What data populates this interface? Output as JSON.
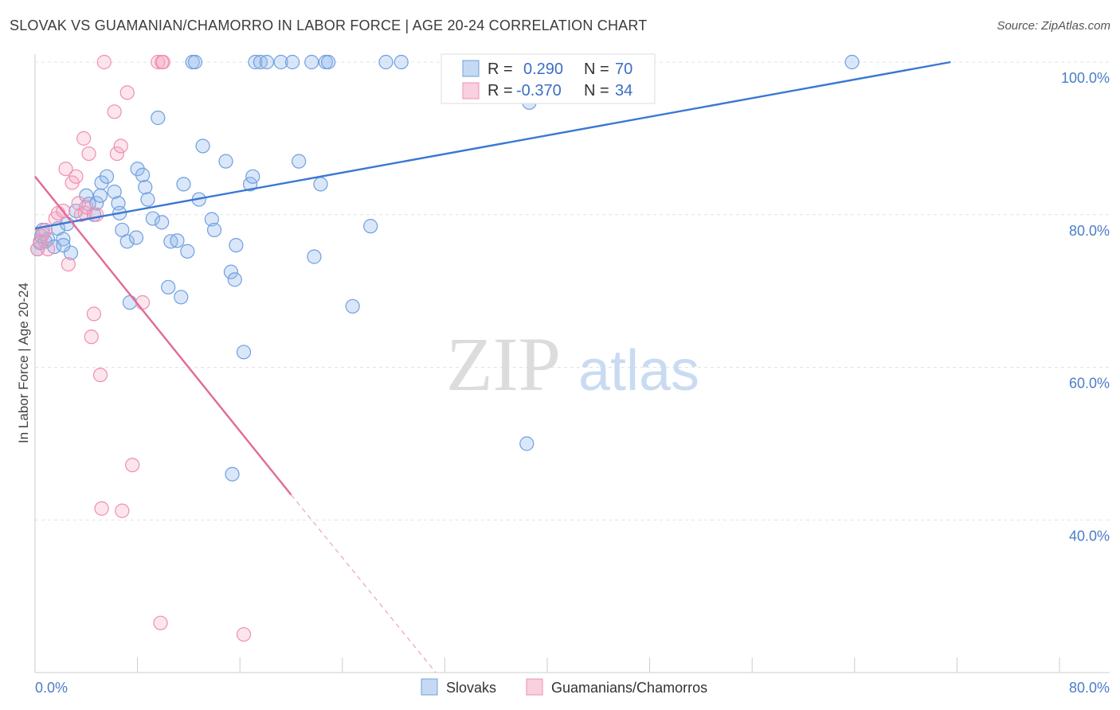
{
  "title": "SLOVAK VS GUAMANIAN/CHAMORRO IN LABOR FORCE | AGE 20-24 CORRELATION CHART",
  "source": "Source: ZipAtlas.com",
  "watermark": {
    "zip": "ZIP",
    "atlas": "atlas"
  },
  "legend": {
    "r_label": "R =",
    "n_label": "N =",
    "rows": [
      {
        "series": "Slovaks",
        "r": "0.290",
        "n": "70",
        "color": "#6f9fe0"
      },
      {
        "series": "Guamanians/Chamorros",
        "r": "-0.370",
        "n": "34",
        "color": "#ef8fb0"
      }
    ]
  },
  "chart_data": {
    "type": "scatter",
    "title": "SLOVAK VS GUAMANIAN/CHAMORRO IN LABOR FORCE | AGE 20-24 CORRELATION CHART",
    "xlabel": "",
    "ylabel": "In Labor Force | Age 20-24",
    "xlim": [
      0,
      80
    ],
    "ylim": [
      20,
      100
    ],
    "x_tick_labels": [
      "0.0%",
      "80.0%"
    ],
    "y_ticks": [
      40,
      60,
      80,
      100
    ],
    "y_tick_labels": [
      "40.0%",
      "60.0%",
      "80.0%",
      "100.0%"
    ],
    "grid": true,
    "legend_position": "top-center",
    "series": [
      {
        "name": "Slovaks",
        "color": "#6f9fe0",
        "trend": {
          "x": [
            0,
            71.5
          ],
          "y": [
            78.2,
            100
          ]
        },
        "points": [
          [
            0.2,
            75.5
          ],
          [
            0.4,
            76.3
          ],
          [
            0.5,
            77.2
          ],
          [
            0.6,
            78
          ],
          [
            0.8,
            76.5
          ],
          [
            1,
            76.8
          ],
          [
            1.5,
            75.8
          ],
          [
            1.8,
            78.2
          ],
          [
            2.2,
            76.8
          ],
          [
            2.5,
            78.8
          ],
          [
            2.8,
            75
          ],
          [
            2.2,
            76
          ],
          [
            3.2,
            80.5
          ],
          [
            4,
            82.5
          ],
          [
            4.2,
            81.4
          ],
          [
            4.6,
            80
          ],
          [
            4.8,
            81.5
          ],
          [
            5.1,
            82.5
          ],
          [
            5.2,
            84.2
          ],
          [
            5.6,
            85
          ],
          [
            6.2,
            83
          ],
          [
            6.5,
            81.5
          ],
          [
            6.6,
            80.2
          ],
          [
            6.8,
            78
          ],
          [
            7.2,
            76.5
          ],
          [
            7.4,
            68.5
          ],
          [
            7.9,
            77
          ],
          [
            8,
            86
          ],
          [
            8.4,
            85.2
          ],
          [
            8.6,
            83.6
          ],
          [
            8.8,
            82
          ],
          [
            9.2,
            79.5
          ],
          [
            9.6,
            92.7
          ],
          [
            9.9,
            79
          ],
          [
            10.4,
            70.5
          ],
          [
            10.6,
            76.5
          ],
          [
            11.1,
            76.6
          ],
          [
            11.4,
            69.2
          ],
          [
            11.6,
            84
          ],
          [
            11.9,
            75.2
          ],
          [
            12.3,
            100
          ],
          [
            12.5,
            100
          ],
          [
            12.8,
            82
          ],
          [
            13.1,
            89
          ],
          [
            13.8,
            79.4
          ],
          [
            14,
            78
          ],
          [
            14.9,
            87
          ],
          [
            15.3,
            72.5
          ],
          [
            15.4,
            46
          ],
          [
            15.6,
            71.5
          ],
          [
            15.7,
            76
          ],
          [
            16.3,
            62
          ],
          [
            16.8,
            84
          ],
          [
            17,
            85
          ],
          [
            17.2,
            100
          ],
          [
            17.6,
            100
          ],
          [
            18.1,
            100
          ],
          [
            19.2,
            100
          ],
          [
            20.1,
            100
          ],
          [
            20.6,
            87
          ],
          [
            21.6,
            100
          ],
          [
            21.8,
            74.5
          ],
          [
            22.3,
            84
          ],
          [
            22.7,
            100
          ],
          [
            22.9,
            100
          ],
          [
            24.8,
            68
          ],
          [
            26.2,
            78.5
          ],
          [
            27.4,
            100
          ],
          [
            28.6,
            100
          ],
          [
            38.4,
            50
          ],
          [
            38.6,
            94.7
          ],
          [
            63.8,
            100
          ]
        ]
      },
      {
        "name": "Guamanians/Chamorros",
        "color": "#ef8fb0",
        "trend": {
          "x": [
            0,
            20
          ],
          "y": [
            85,
            43.3
          ]
        },
        "trend_dashed": {
          "x": [
            20,
            31.3
          ],
          "y": [
            43.3,
            20
          ]
        },
        "points": [
          [
            0.2,
            75.5
          ],
          [
            0.4,
            76.5
          ],
          [
            0.6,
            77.5
          ],
          [
            0.8,
            78
          ],
          [
            1,
            75.5
          ],
          [
            1.6,
            79.5
          ],
          [
            1.8,
            80.2
          ],
          [
            2.2,
            80.5
          ],
          [
            2.4,
            86
          ],
          [
            2.6,
            73.5
          ],
          [
            2.9,
            84.2
          ],
          [
            3.2,
            85
          ],
          [
            3.4,
            81.5
          ],
          [
            3.6,
            80
          ],
          [
            3.9,
            80.2
          ],
          [
            3.8,
            90
          ],
          [
            4,
            81
          ],
          [
            4.2,
            88
          ],
          [
            4.4,
            64
          ],
          [
            4.6,
            67
          ],
          [
            4.8,
            80
          ],
          [
            5.1,
            59
          ],
          [
            5.2,
            41.5
          ],
          [
            5.4,
            100
          ],
          [
            6.2,
            93.5
          ],
          [
            6.4,
            88
          ],
          [
            6.7,
            89
          ],
          [
            6.8,
            41.2
          ],
          [
            7.2,
            96
          ],
          [
            7.6,
            47.2
          ],
          [
            8.4,
            68.5
          ],
          [
            9.6,
            100
          ],
          [
            9.8,
            26.5
          ],
          [
            9.9,
            100
          ],
          [
            10,
            100
          ],
          [
            16.3,
            25
          ]
        ]
      }
    ]
  }
}
